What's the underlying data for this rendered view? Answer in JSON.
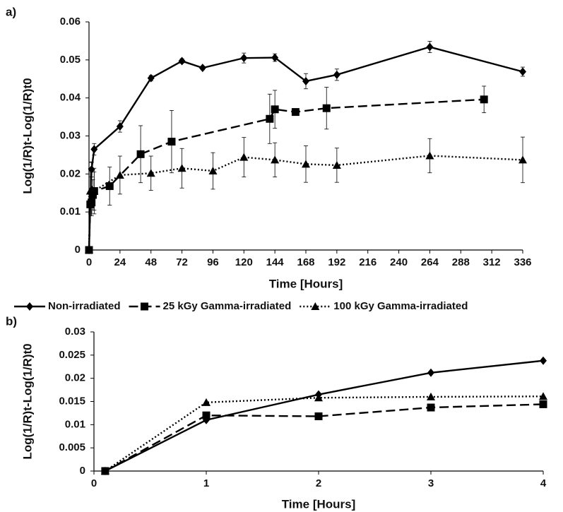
{
  "chart_data": [
    {
      "type": "line",
      "label": "a)",
      "xlabel": "Time [Hours]",
      "ylabel": "Log(1/R)t-Log(1/R)t0",
      "xlim": [
        0,
        336
      ],
      "xticks": [
        0,
        24,
        48,
        72,
        96,
        120,
        144,
        168,
        192,
        216,
        240,
        264,
        288,
        312,
        336
      ],
      "ylim": [
        0,
        0.06
      ],
      "yticks": [
        0,
        0.01,
        0.02,
        0.03,
        0.04,
        0.05,
        0.06
      ],
      "grid": false,
      "legend": "bottom",
      "series": [
        {
          "name": "Non-irradiated",
          "color": "#000000",
          "style": "solid",
          "marker": "diamond",
          "x": [
            0,
            1,
            2,
            4,
            24,
            48,
            72,
            88,
            120,
            144,
            168,
            192,
            264,
            336
          ],
          "values": [
            0,
            0.012,
            0.0212,
            0.0265,
            0.0325,
            0.0452,
            0.0497,
            0.0479,
            0.0505,
            0.0506,
            0.0444,
            0.0461,
            0.0534,
            0.0469
          ],
          "errors": [
            0,
            0.002,
            0.002,
            0.0015,
            0.0015,
            0.0007,
            0.0006,
            0.0005,
            0.0013,
            0.001,
            0.002,
            0.0015,
            0.0015,
            0.0012
          ]
        },
        {
          "name": "25 kGy Gamma-irradiated",
          "color": "#000000",
          "style": "dashed",
          "marker": "square",
          "x": [
            0,
            1,
            2,
            3,
            4,
            16,
            40,
            64,
            140,
            144,
            160,
            184,
            306
          ],
          "values": [
            0,
            0.012,
            0.0125,
            0.0145,
            0.0155,
            0.0168,
            0.0252,
            0.0285,
            0.0345,
            0.037,
            0.0363,
            0.0373,
            0.0396
          ],
          "errors": [
            0,
            0.002,
            0.003,
            0.004,
            0.005,
            0.005,
            0.0075,
            0.0082,
            0.0065,
            0.005,
            0.0005,
            0.0055,
            0.0035
          ]
        },
        {
          "name": "100 kGy Gamma-irradiated",
          "color": "#000000",
          "style": "dotted",
          "marker": "triangle",
          "x": [
            0,
            1,
            2,
            4,
            24,
            48,
            72,
            96,
            120,
            144,
            168,
            192,
            264,
            336
          ],
          "values": [
            0,
            0.0155,
            0.016,
            0.0155,
            0.0197,
            0.0202,
            0.0215,
            0.0208,
            0.0244,
            0.0237,
            0.0226,
            0.0223,
            0.0248,
            0.0237
          ],
          "errors": [
            0,
            0.006,
            0.007,
            0.006,
            0.005,
            0.0045,
            0.0052,
            0.0048,
            0.0052,
            0.0045,
            0.0048,
            0.0045,
            0.0045,
            0.006
          ]
        }
      ]
    },
    {
      "type": "line",
      "label": "b)",
      "xlabel": "Time [Hours]",
      "ylabel": "Log(1/R)t-Log(1/R)t0",
      "xlim": [
        0,
        4
      ],
      "xticks": [
        0,
        1,
        2,
        3,
        4
      ],
      "ylim": [
        0,
        0.03
      ],
      "yticks": [
        0,
        0.005,
        0.01,
        0.015,
        0.02,
        0.025,
        0.03
      ],
      "grid": false,
      "x": [
        0.1,
        1,
        2,
        3,
        4
      ],
      "series": [
        {
          "color": "#000000",
          "style": "solid",
          "marker": "diamond",
          "values": [
            0,
            0.011,
            0.0165,
            0.0212,
            0.0238
          ]
        },
        {
          "color": "#000000",
          "style": "dashed",
          "marker": "square",
          "values": [
            0,
            0.012,
            0.0118,
            0.0137,
            0.0144
          ]
        },
        {
          "color": "#000000",
          "style": "dotted",
          "marker": "triangle",
          "values": [
            0,
            0.0148,
            0.0158,
            0.016,
            0.0161
          ]
        }
      ]
    }
  ]
}
